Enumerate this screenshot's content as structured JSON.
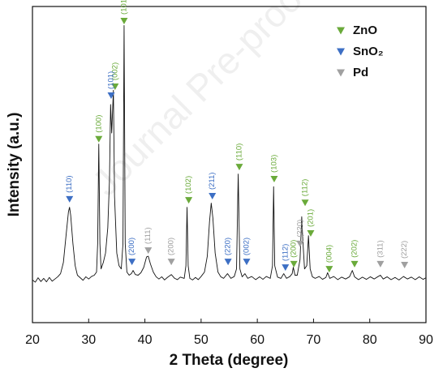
{
  "chart_data": {
    "type": "line",
    "watermark": "Journal Pre-proof",
    "x_label": "2 Theta (degree)",
    "y_label": "Intensity (a.u.)",
    "xlim": [
      20,
      90
    ],
    "xticks": [
      20,
      30,
      40,
      50,
      60,
      70,
      80,
      90
    ],
    "ylim": [
      0,
      100
    ],
    "x": [
      20,
      20.5,
      21,
      21.5,
      22,
      22.5,
      23,
      23.5,
      24,
      24.5,
      25,
      25.5,
      26,
      26.4,
      26.6,
      26.8,
      27.2,
      27.6,
      28,
      28.5,
      29,
      29.5,
      30,
      30.5,
      31,
      31.4,
      31.6,
      31.8,
      32,
      32.2,
      32.6,
      33,
      33.4,
      33.7,
      33.9,
      34.1,
      34.4,
      34.6,
      35,
      35.4,
      35.8,
      36.1,
      36.3,
      36.5,
      36.8,
      37.2,
      37.6,
      37.9,
      38.3,
      38.8,
      39.3,
      39.8,
      40.3,
      40.6,
      41,
      41.5,
      42,
      42.5,
      43,
      43.5,
      44,
      44.7,
      45.3,
      45.8,
      46.3,
      47,
      47.3,
      47.5,
      47.7,
      48,
      48.5,
      49,
      49.5,
      50,
      50.6,
      51.1,
      51.5,
      51.8,
      52.1,
      52.5,
      53,
      53.5,
      54,
      54.7,
      55.3,
      55.9,
      56.3,
      56.6,
      56.9,
      57.3,
      57.8,
      58.3,
      59,
      59.7,
      60.4,
      61,
      61.6,
      62.3,
      62.7,
      62.9,
      63.1,
      63.6,
      64.2,
      64.7,
      65.2,
      65.8,
      66.2,
      66.4,
      66.7,
      67.1,
      67.6,
      67.9,
      68.1,
      68.4,
      68.8,
      69.1,
      69.4,
      69.8,
      70.3,
      71,
      71.6,
      72.2,
      72.5,
      72.9,
      73.6,
      74.3,
      75,
      75.7,
      76.4,
      76.9,
      77.3,
      78,
      78.7,
      79.4,
      80.1,
      80.8,
      81.5,
      81.9,
      82.4,
      83.1,
      83.8,
      84.5,
      85.2,
      86,
      86.7,
      87.4,
      88.1,
      88.8,
      89.5,
      90
    ],
    "series": [
      {
        "color": "#111111",
        "values": [
          13.5,
          12.8,
          14.2,
          13,
          14,
          12.9,
          14.3,
          13.1,
          13.8,
          14.5,
          15.5,
          19,
          28,
          35,
          36.5,
          34,
          25,
          18,
          15,
          14.2,
          13.4,
          14.5,
          13.8,
          14.6,
          15,
          16,
          25,
          56.5,
          25,
          17,
          19,
          22,
          30,
          45,
          69,
          60,
          73.5,
          40,
          22,
          18,
          17,
          25,
          94,
          25,
          16,
          15,
          15.5,
          16.5,
          15.2,
          15,
          15.8,
          17.5,
          20.8,
          21,
          18.5,
          16,
          14.5,
          13.8,
          14.5,
          13.5,
          14.3,
          15.2,
          14,
          13.6,
          14.4,
          14,
          18,
          36.5,
          18,
          14,
          13.5,
          14.3,
          13.6,
          14.6,
          16,
          21,
          32,
          37.8,
          33,
          22,
          16,
          14.5,
          14,
          15.5,
          14,
          14.6,
          17,
          47,
          17,
          14.5,
          15.5,
          14,
          14.6,
          13.6,
          14.5,
          13.7,
          14.6,
          14,
          18,
          43,
          18,
          14.4,
          14,
          15.5,
          14,
          14.6,
          15.5,
          17.5,
          15,
          15,
          20,
          33.5,
          26,
          17,
          18,
          27.5,
          17,
          14.5,
          14,
          14.6,
          13.7,
          14.3,
          15.8,
          14,
          14.6,
          13.6,
          14.4,
          13.8,
          14.5,
          16.5,
          14.5,
          13.6,
          14.4,
          13.7,
          14.5,
          13.8,
          14.6,
          15,
          13.8,
          14.5,
          13.6,
          14.3,
          13.5,
          14.6,
          13.8,
          14.4,
          13.6,
          14.5,
          13.7,
          14.2
        ]
      }
    ],
    "phases": [
      {
        "name": "ZnO",
        "color": "#6aaa3a",
        "peaks": [
          {
            "x": 31.8,
            "y": 58,
            "label": "(100)"
          },
          {
            "x": 34.7,
            "y": 74.6,
            "label": "(002)"
          },
          {
            "x": 36.3,
            "y": 95.4,
            "label": "(101)"
          },
          {
            "x": 47.8,
            "y": 38.7,
            "label": "(102)"
          },
          {
            "x": 56.8,
            "y": 49.2,
            "label": "(110)"
          },
          {
            "x": 63,
            "y": 45.4,
            "label": "(103)"
          },
          {
            "x": 66.5,
            "y": 18.5,
            "label": "(200)"
          },
          {
            "x": 68.5,
            "y": 37.9,
            "label": "(112)"
          },
          {
            "x": 69.5,
            "y": 28.2,
            "label": "(201)"
          },
          {
            "x": 72.8,
            "y": 16.9,
            "label": "(004)"
          },
          {
            "x": 77.3,
            "y": 18.5,
            "label": "(202)"
          }
        ]
      },
      {
        "name": "SnO₂",
        "color": "#3d6fc4",
        "peaks": [
          {
            "x": 26.6,
            "y": 39,
            "label": "(110)"
          },
          {
            "x": 34,
            "y": 71.8,
            "label": "(101)"
          },
          {
            "x": 37.7,
            "y": 19.2,
            "label": "(200)"
          },
          {
            "x": 52,
            "y": 40,
            "label": "(211)"
          },
          {
            "x": 54.8,
            "y": 19.2,
            "label": "(220)"
          },
          {
            "x": 58.1,
            "y": 19.2,
            "label": "(002)"
          },
          {
            "x": 65,
            "y": 17.4,
            "label": "(112)"
          }
        ]
      },
      {
        "name": "Pd",
        "color": "#a0a0a0",
        "peaks": [
          {
            "x": 40.6,
            "y": 22.8,
            "label": "(111)"
          },
          {
            "x": 44.7,
            "y": 19.2,
            "label": "(200)"
          },
          {
            "x": 67.6,
            "y": 24.9,
            "label": "(220)"
          },
          {
            "x": 81.9,
            "y": 18.5,
            "label": "(311)"
          },
          {
            "x": 86.2,
            "y": 18.2,
            "label": "(222)"
          }
        ]
      }
    ]
  }
}
